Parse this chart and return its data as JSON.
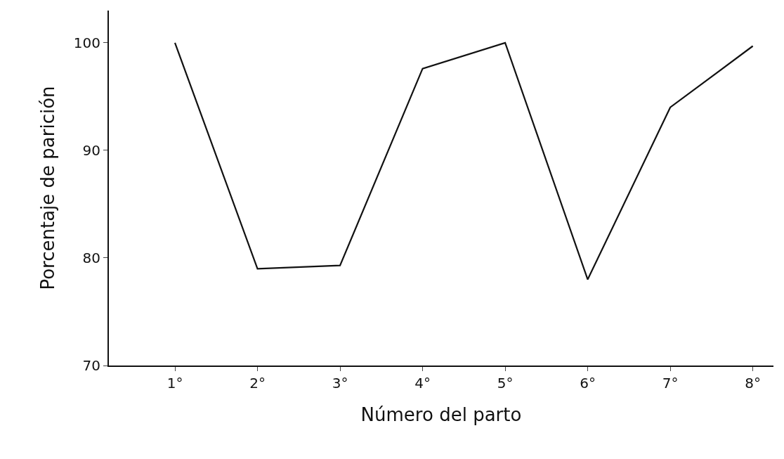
{
  "chart_data": {
    "type": "line",
    "xlabel": "Número del parto",
    "ylabel": "Porcentaje de parición",
    "categories": [
      "1°",
      "2°",
      "3°",
      "4°",
      "5°",
      "6°",
      "7°",
      "8°"
    ],
    "values": [
      100,
      79,
      79.3,
      97.6,
      100,
      78,
      94,
      99.7
    ],
    "color": "#111111",
    "ylim": [
      70,
      103
    ],
    "yticks": [
      70,
      80,
      90,
      100
    ],
    "grid": false,
    "legend": false,
    "marker": "none",
    "line_style": "solid"
  }
}
